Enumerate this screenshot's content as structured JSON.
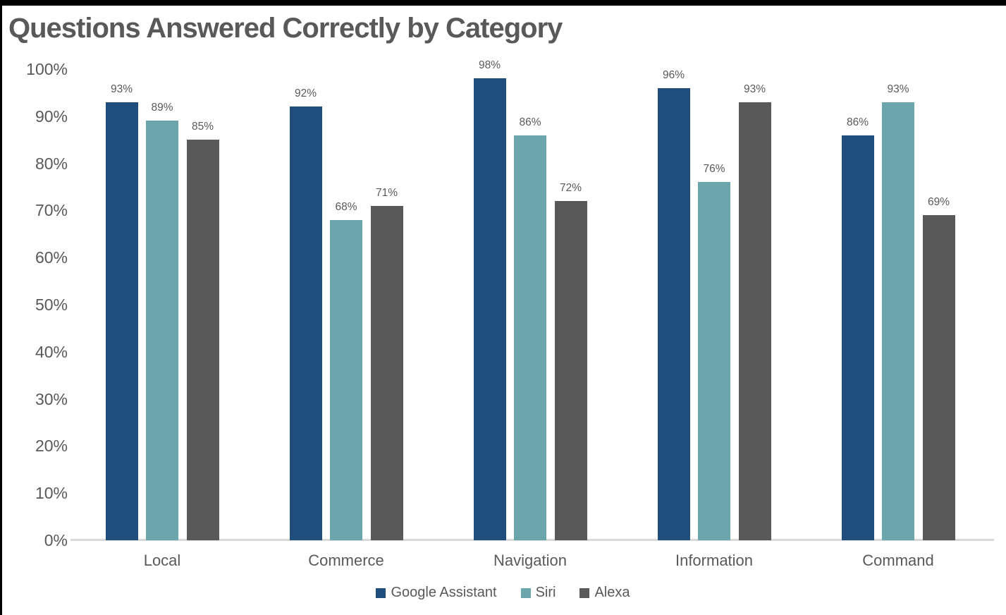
{
  "title": "Questions Answered Correctly by Category",
  "colors": {
    "frame": "#000000",
    "title_text": "#595959",
    "axis_text": "#595959",
    "data_label_text": "#595959",
    "category_text": "#595959",
    "legend_text": "#595959",
    "axis_line": "#D9D9D9",
    "background": "#FFFFFF"
  },
  "chart_data": {
    "type": "bar",
    "title": "Questions Answered Correctly by Category",
    "categories": [
      "Local",
      "Commerce",
      "Navigation",
      "Information",
      "Command"
    ],
    "series": [
      {
        "name": "Google Assistant",
        "color": "#204E7C",
        "values": [
          93,
          92,
          98,
          96,
          86
        ]
      },
      {
        "name": "Siri",
        "color": "#6AA6AC",
        "values": [
          89,
          68,
          86,
          76,
          93
        ]
      },
      {
        "name": "Alexa",
        "color": "#595959",
        "values": [
          85,
          71,
          72,
          93,
          69
        ]
      }
    ],
    "data_labels": [
      [
        "93%",
        "92%",
        "98%",
        "96%",
        "86%"
      ],
      [
        "89%",
        "68%",
        "86%",
        "76%",
        "93%"
      ],
      [
        "85%",
        "71%",
        "72%",
        "93%",
        "69%"
      ]
    ],
    "xlabel": "",
    "ylabel": "",
    "yaxis": {
      "min": 0,
      "max": 100,
      "step": 10,
      "tick_labels": [
        "0%",
        "10%",
        "20%",
        "30%",
        "40%",
        "50%",
        "60%",
        "70%",
        "80%",
        "90%",
        "100%"
      ]
    },
    "grid": false,
    "legend_position": "bottom"
  }
}
